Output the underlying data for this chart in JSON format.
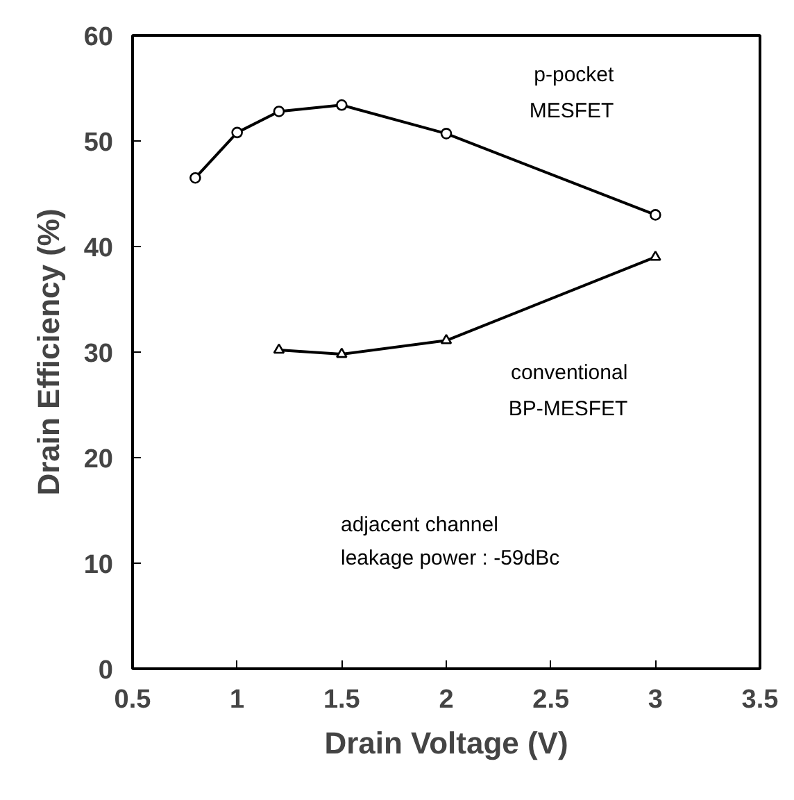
{
  "chart_data": {
    "type": "line",
    "xlabel": "Drain Voltage (V)",
    "ylabel": "Drain Efficiency (%)",
    "xlim": [
      0.5,
      3.5
    ],
    "ylim": [
      0,
      60
    ],
    "xticks": [
      0.5,
      1,
      1.5,
      2,
      2.5,
      3,
      3.5
    ],
    "yticks": [
      0,
      10,
      20,
      30,
      40,
      50,
      60
    ],
    "grid": false,
    "series": [
      {
        "name": "p-pocket\nMESFET",
        "color": "#000000",
        "marker": "circle",
        "x": [
          0.8,
          1.0,
          1.2,
          1.5,
          2.0,
          3.0
        ],
        "values": [
          46.5,
          50.8,
          52.8,
          53.4,
          50.7,
          43.0
        ]
      },
      {
        "name": "conventional\nBP-MESFET",
        "color": "#000000",
        "marker": "triangle",
        "x": [
          1.2,
          1.5,
          2.0,
          3.0
        ],
        "values": [
          30.2,
          29.8,
          31.1,
          39.0
        ]
      }
    ],
    "annotations": [
      "adjacent channel\n leakage power   : -59dBc"
    ]
  }
}
